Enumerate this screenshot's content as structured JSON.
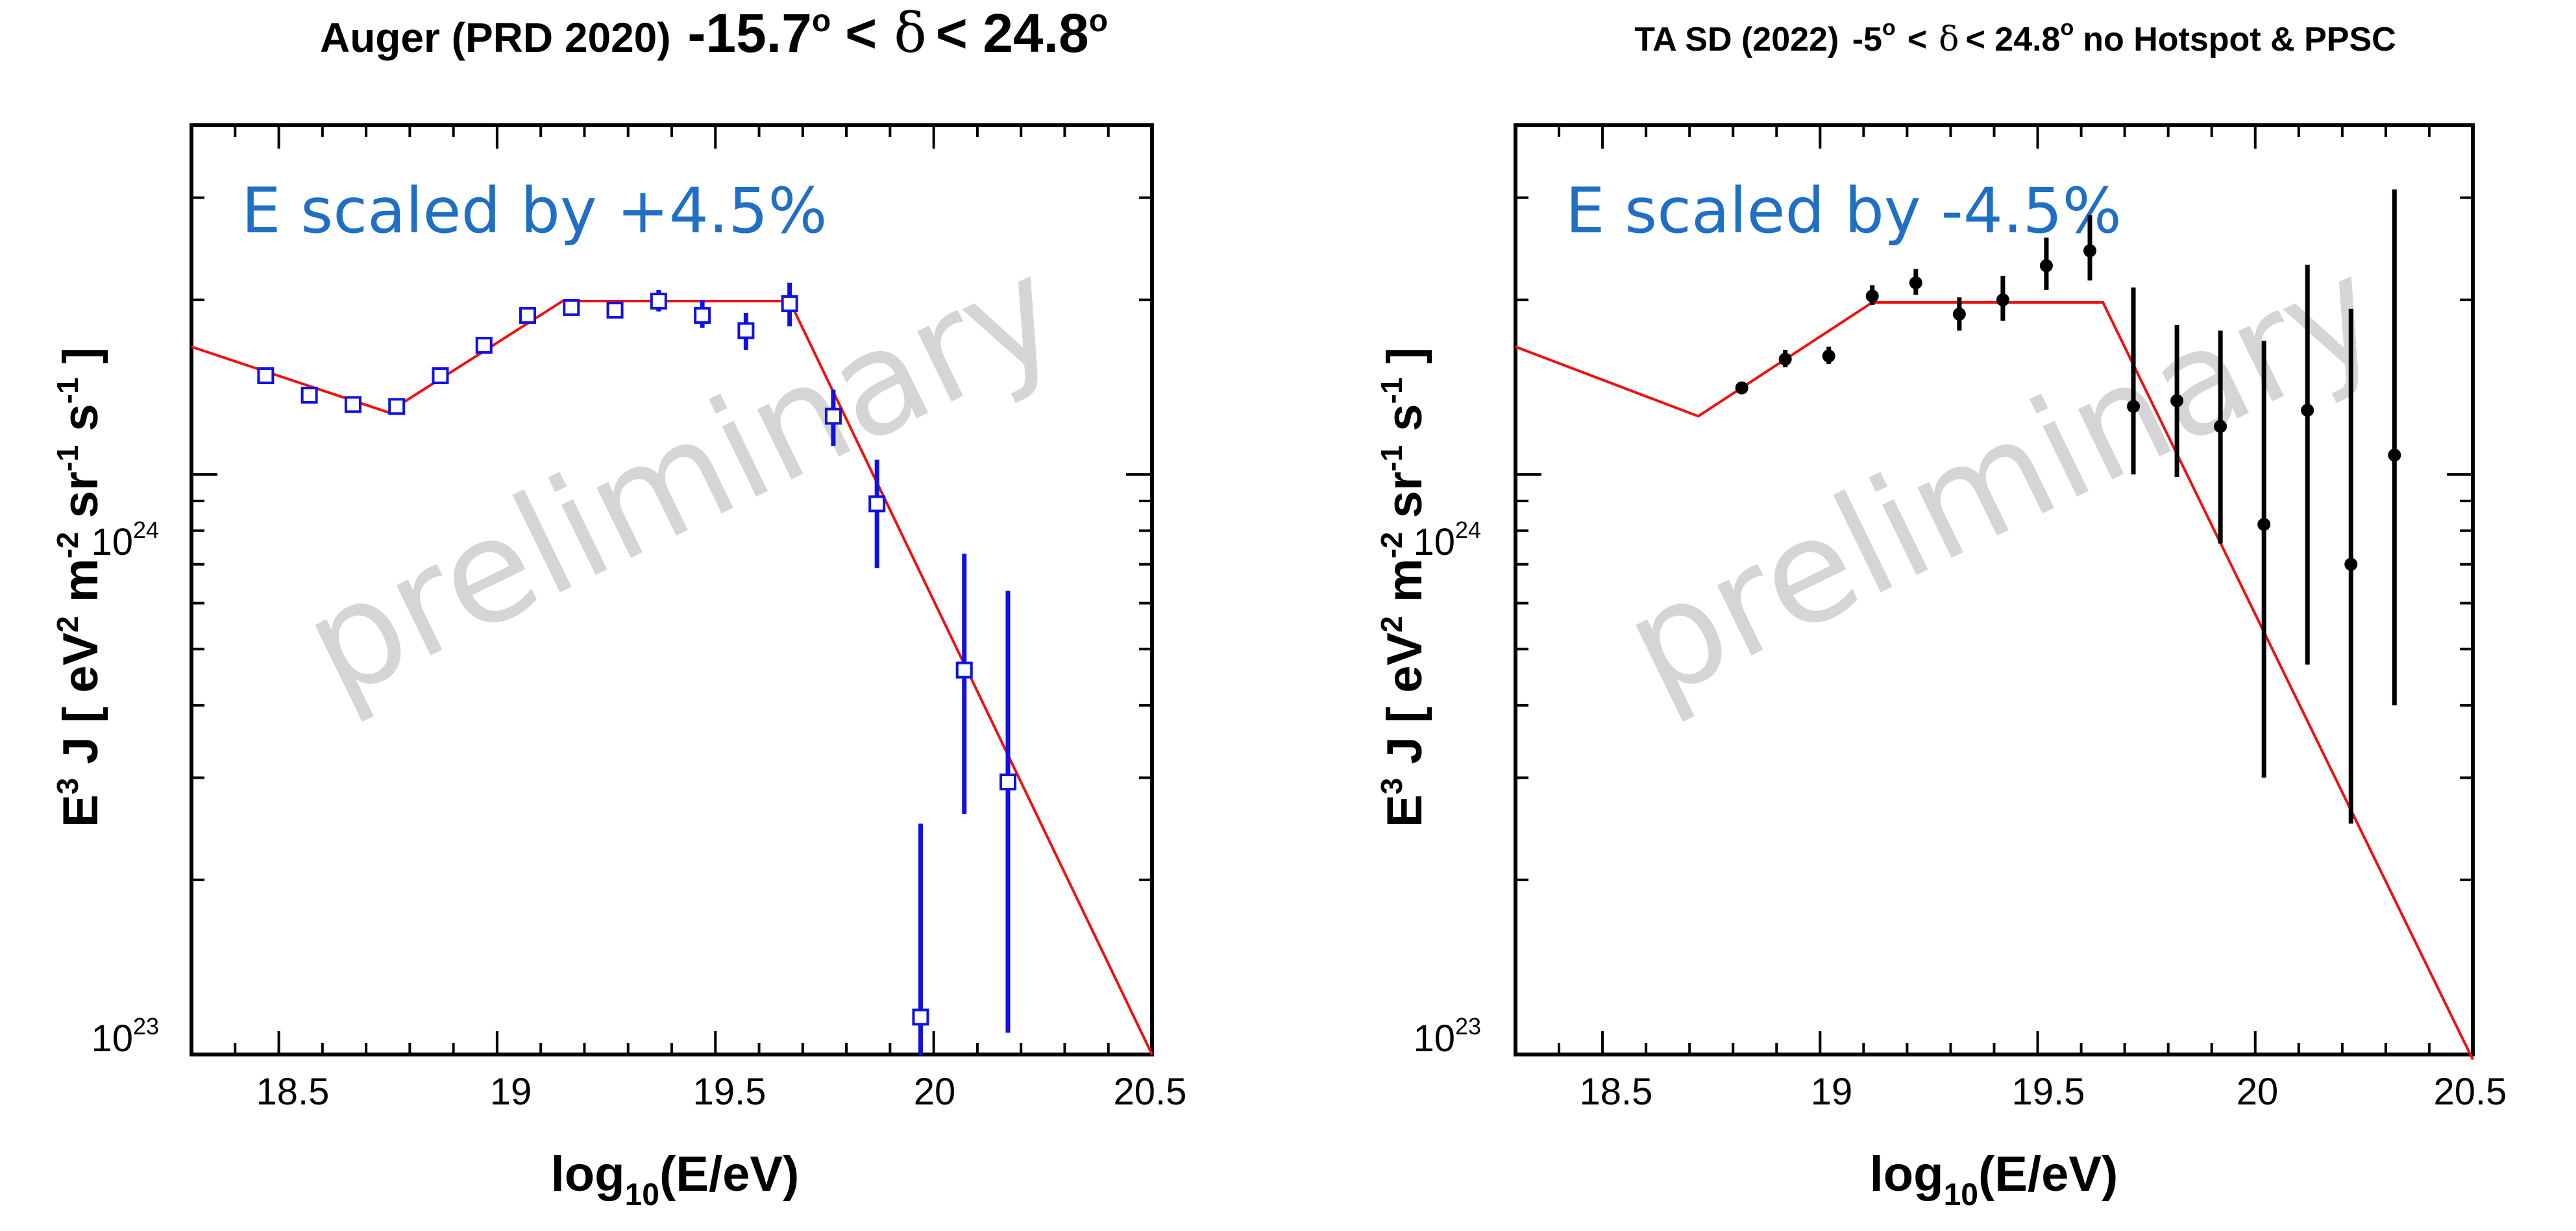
{
  "chart_data": [
    {
      "type": "scatter",
      "title": {
        "prefix": "Auger (PRD 2020)",
        "lo": "-15.7",
        "sup1": "o",
        "lt1": "<",
        "delta": "δ",
        "hi": "< 24.8",
        "sup2": "o",
        "suffix": ""
      },
      "xlabel": {
        "base": "log",
        "sub": "10",
        "rest": "(E/eV)"
      },
      "ylabel": {
        "a": "E",
        "a_sup": "3",
        "b": " J [ eV",
        "b_sup": "2",
        "c": " m",
        "c_sup": "-2",
        "d": " sr",
        "d_sup": "-1",
        "e": " s",
        "e_sup": "-1",
        "f": " ]"
      },
      "xlim": [
        18.3,
        20.5
      ],
      "ylim": [
        1e+23,
        4e+24
      ],
      "yscale": "log",
      "x_ticks": [
        18.5,
        19,
        19.5,
        20,
        20.5
      ],
      "x_tick_labels": [
        "18.5",
        "19",
        "19.5",
        "20",
        "20.5"
      ],
      "y_tick_labels": [
        {
          "value": 1e+24,
          "base": "10",
          "exp": "24"
        },
        {
          "value": 1e+23,
          "base": "10",
          "exp": "23"
        }
      ],
      "annotation": "E scaled by +4.5%",
      "annotation_color": "#1f6fc5",
      "watermark": "preliminary",
      "marker": "open-square",
      "marker_color": "#1010e6",
      "points": [
        {
          "x": 18.47,
          "y": 1.48e+24,
          "lo": 1.45e+24,
          "hi": 1.51e+24
        },
        {
          "x": 18.57,
          "y": 1.37e+24,
          "lo": 1.34e+24,
          "hi": 1.4e+24
        },
        {
          "x": 18.67,
          "y": 1.32e+24,
          "lo": 1.29e+24,
          "hi": 1.35e+24
        },
        {
          "x": 18.77,
          "y": 1.31e+24,
          "lo": 1.28e+24,
          "hi": 1.34e+24
        },
        {
          "x": 18.87,
          "y": 1.48e+24,
          "lo": 1.45e+24,
          "hi": 1.51e+24
        },
        {
          "x": 18.97,
          "y": 1.67e+24,
          "lo": 1.64e+24,
          "hi": 1.7e+24
        },
        {
          "x": 19.07,
          "y": 1.88e+24,
          "lo": 1.85e+24,
          "hi": 1.92e+24
        },
        {
          "x": 19.17,
          "y": 1.94e+24,
          "lo": 1.9e+24,
          "hi": 1.98e+24
        },
        {
          "x": 19.27,
          "y": 1.92e+24,
          "lo": 1.86e+24,
          "hi": 1.98e+24
        },
        {
          "x": 19.37,
          "y": 1.99e+24,
          "lo": 1.91e+24,
          "hi": 2.08e+24
        },
        {
          "x": 19.47,
          "y": 1.88e+24,
          "lo": 1.79e+24,
          "hi": 2e+24
        },
        {
          "x": 19.57,
          "y": 1.77e+24,
          "lo": 1.64e+24,
          "hi": 1.9e+24
        },
        {
          "x": 19.67,
          "y": 1.97e+24,
          "lo": 1.8e+24,
          "hi": 2.14e+24
        },
        {
          "x": 19.77,
          "y": 1.26e+24,
          "lo": 1.12e+24,
          "hi": 1.4e+24
        },
        {
          "x": 19.87,
          "y": 8.9e+23,
          "lo": 6.9e+23,
          "hi": 1.06e+24
        },
        {
          "x": 19.97,
          "y": 1.16e+23,
          "lo": 1e+23,
          "hi": 2.5e+23
        },
        {
          "x": 20.07,
          "y": 4.6e+23,
          "lo": 2.6e+23,
          "hi": 7.3e+23
        },
        {
          "x": 20.17,
          "y": 2.95e+23,
          "lo": 1.09e+23,
          "hi": 6.3e+23
        }
      ],
      "fit_line": {
        "color": "#ee1111",
        "x": [
          18.3,
          18.75,
          19.15,
          19.67,
          20.5
        ],
        "y": [
          1.66e+24,
          1.28e+24,
          1.99e+24,
          1.99e+24,
          1e+23
        ]
      }
    },
    {
      "type": "scatter",
      "title": {
        "prefix": "TA SD (2022)",
        "lo": "-5",
        "sup1": "o",
        "lt1": "<",
        "delta": "δ",
        "hi": "< 24.8",
        "sup2": "o",
        "suffix": "no Hotspot & PPSC"
      },
      "xlabel": {
        "base": "log",
        "sub": "10",
        "rest": "(E/eV)"
      },
      "ylabel": {
        "a": "E",
        "a_sup": "3",
        "b": " J [ eV",
        "b_sup": "2",
        "c": " m",
        "c_sup": "-2",
        "d": " sr",
        "d_sup": "-1",
        "e": " s",
        "e_sup": "-1",
        "f": " ]"
      },
      "xlim": [
        18.3,
        20.5
      ],
      "ylim": [
        1e+23,
        4e+24
      ],
      "yscale": "log",
      "x_ticks": [
        18.5,
        19,
        19.5,
        20,
        20.5
      ],
      "x_tick_labels": [
        "18.5",
        "19",
        "19.5",
        "20",
        "20.5"
      ],
      "y_tick_labels": [
        {
          "value": 1e+24,
          "base": "10",
          "exp": "24"
        },
        {
          "value": 1e+23,
          "base": "10",
          "exp": "23"
        }
      ],
      "annotation": "E scaled by -4.5%",
      "annotation_color": "#1f6fc5",
      "watermark": "preliminary",
      "marker": "filled-circle",
      "marker_color": "#000000",
      "points": [
        {
          "x": 18.82,
          "y": 1.41e+24,
          "lo": 1.38e+24,
          "hi": 1.44e+24
        },
        {
          "x": 18.92,
          "y": 1.58e+24,
          "lo": 1.53e+24,
          "hi": 1.64e+24
        },
        {
          "x": 19.02,
          "y": 1.6e+24,
          "lo": 1.55e+24,
          "hi": 1.66e+24
        },
        {
          "x": 19.12,
          "y": 2.03e+24,
          "lo": 1.96e+24,
          "hi": 2.12e+24
        },
        {
          "x": 19.22,
          "y": 2.14e+24,
          "lo": 2.04e+24,
          "hi": 2.26e+24
        },
        {
          "x": 19.32,
          "y": 1.89e+24,
          "lo": 1.77e+24,
          "hi": 2.02e+24
        },
        {
          "x": 19.42,
          "y": 2e+24,
          "lo": 1.84e+24,
          "hi": 2.2e+24
        },
        {
          "x": 19.52,
          "y": 2.29e+24,
          "lo": 2.08e+24,
          "hi": 2.56e+24
        },
        {
          "x": 19.62,
          "y": 2.43e+24,
          "lo": 2.16e+24,
          "hi": 2.8e+24
        },
        {
          "x": 19.72,
          "y": 1.31e+24,
          "lo": 1e+24,
          "hi": 2.1e+24
        },
        {
          "x": 19.82,
          "y": 1.34e+24,
          "lo": 9.9e+23,
          "hi": 1.81e+24
        },
        {
          "x": 19.92,
          "y": 1.21e+24,
          "lo": 7.6e+23,
          "hi": 1.77e+24
        },
        {
          "x": 20.02,
          "y": 8.2e+23,
          "lo": 3e+23,
          "hi": 1.7e+24
        },
        {
          "x": 20.12,
          "y": 1.29e+24,
          "lo": 4.7e+23,
          "hi": 2.3e+24
        },
        {
          "x": 20.22,
          "y": 7e+23,
          "lo": 2.5e+23,
          "hi": 1.93e+24
        },
        {
          "x": 20.32,
          "y": 1.08e+24,
          "lo": 4e+23,
          "hi": 3.1e+24
        }
      ],
      "fit_line": {
        "color": "#ee1111",
        "x": [
          18.3,
          18.72,
          19.12,
          19.65,
          20.5
        ],
        "y": [
          1.66e+24,
          1.26e+24,
          1.98e+24,
          1.98e+24,
          9.8e+22
        ]
      }
    }
  ]
}
